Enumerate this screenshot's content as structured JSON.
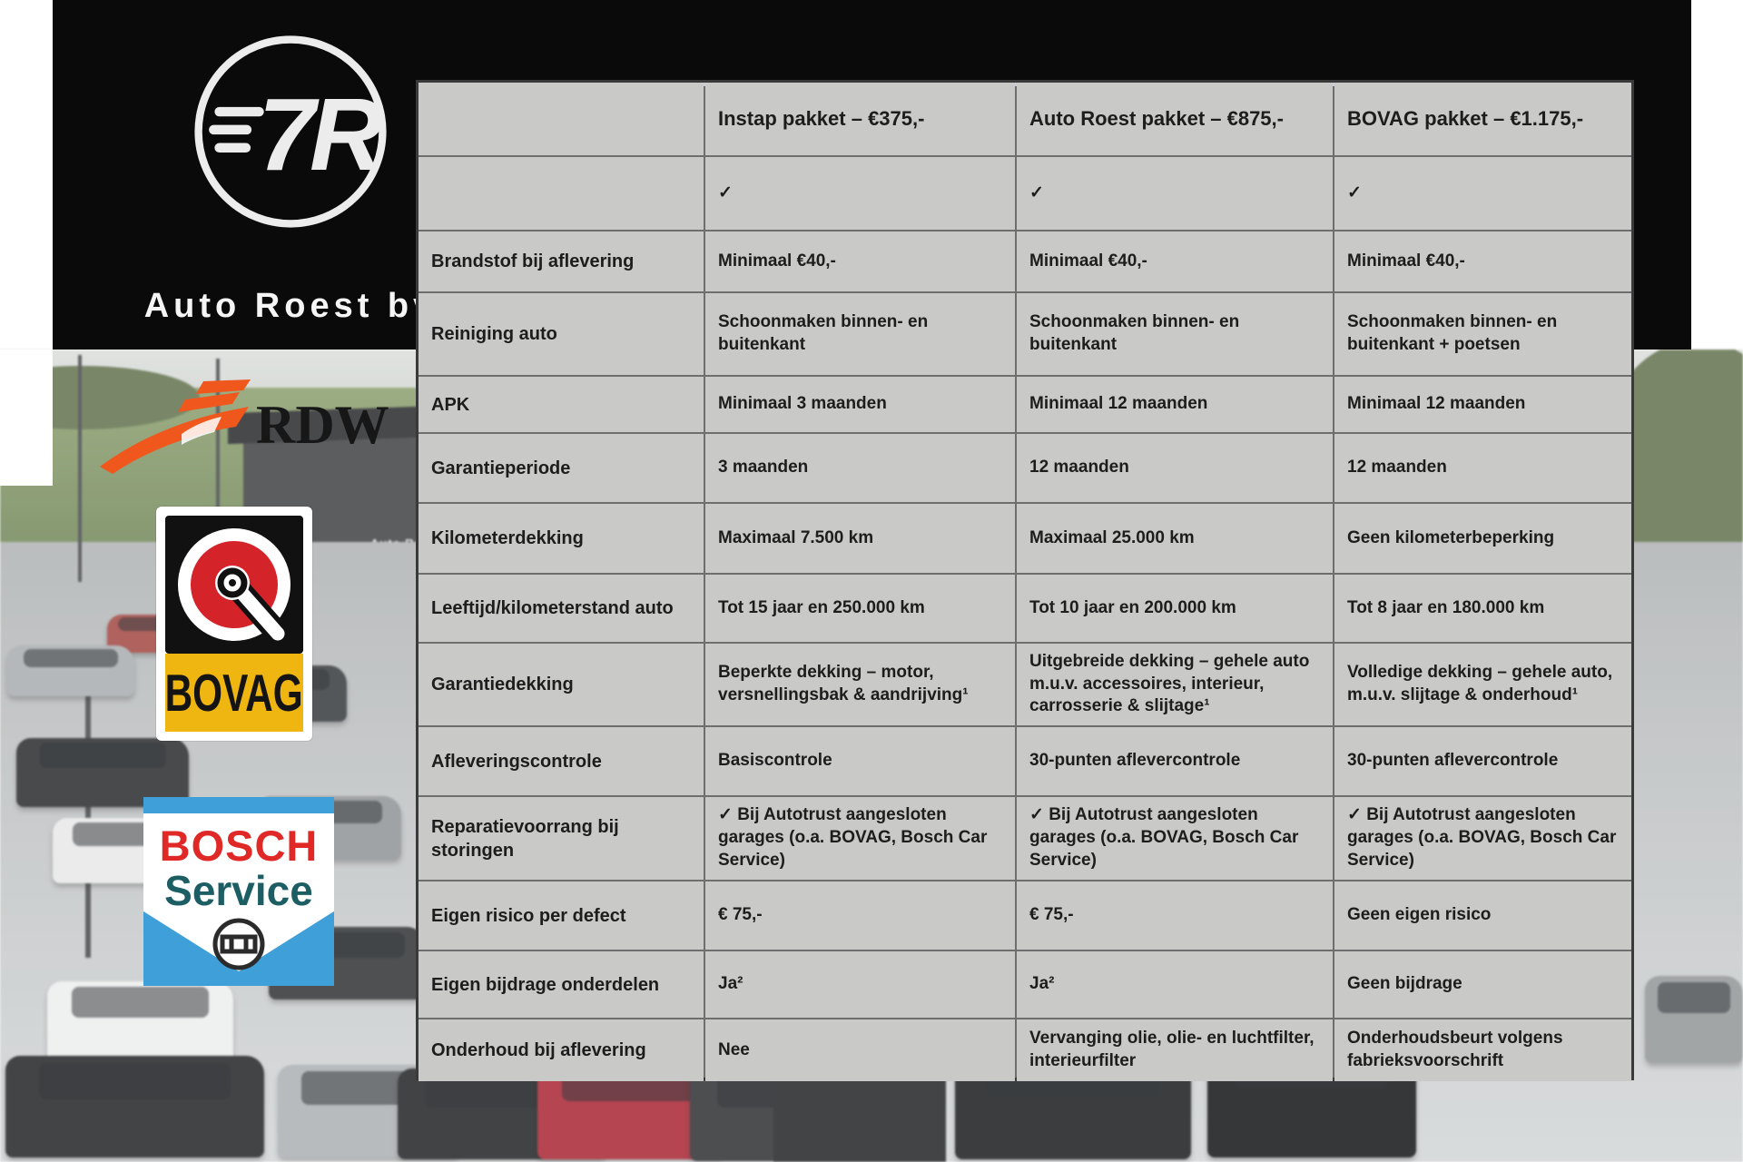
{
  "branding": {
    "auto_roest": {
      "monogram": "7R",
      "name": "Auto Roest bv"
    },
    "rdw": {
      "label": "RDW"
    },
    "bovag": {
      "label": "BOVAG"
    },
    "bosch": {
      "line1": "BOSCH",
      "line2": "Service"
    },
    "building_sign": "Auto Ro"
  },
  "colors": {
    "panel_black": "#0a0a0a",
    "table_cell": "#c9c9c8",
    "table_border": "#3a3a3a",
    "table_accent_top": "#cfc9da",
    "rdw_orange": "#f0571c",
    "bovag_red": "#d5232a",
    "bovag_yellow": "#efb511",
    "bosch_blue": "#3f9fd8",
    "bosch_red": "#e02826",
    "bosch_teal": "#1c5e63"
  },
  "table": {
    "columns": [
      "",
      "Instap pakket – €375,-",
      "Auto Roest pakket – €875,-",
      "BOVAG pakket – €1.175,-"
    ],
    "rows": [
      {
        "label": "",
        "cells": [
          "✓",
          "✓",
          "✓"
        ]
      },
      {
        "label": "Brandstof bij aflevering",
        "cells": [
          "Minimaal €40,-",
          "Minimaal €40,-",
          "Minimaal €40,-"
        ]
      },
      {
        "label": "Reiniging auto",
        "cells": [
          "Schoonmaken binnen- en buitenkant",
          "Schoonmaken binnen- en buitenkant",
          "Schoonmaken binnen- en buitenkant + poetsen"
        ]
      },
      {
        "label": "APK",
        "cells": [
          "Minimaal 3 maanden",
          "Minimaal 12 maanden",
          "Minimaal 12 maanden"
        ]
      },
      {
        "label": "Garantieperiode",
        "cells": [
          "3 maanden",
          "12 maanden",
          "12 maanden"
        ]
      },
      {
        "label": "Kilometerdekking",
        "cells": [
          "Maximaal 7.500 km",
          "Maximaal 25.000 km",
          "Geen kilometerbeperking"
        ]
      },
      {
        "label": "Leeftijd/kilometerstand auto",
        "cells": [
          "Tot 15 jaar en 250.000 km",
          "Tot 10 jaar en 200.000 km",
          "Tot 8 jaar en 180.000 km"
        ]
      },
      {
        "label": "Garantiedekking",
        "cells": [
          "Beperkte dekking – motor, versnellingsbak & aandrijving¹",
          "Uitgebreide dekking – gehele auto m.u.v. accessoires, interieur, carrosserie & slijtage¹",
          "Volledige dekking – gehele auto, m.u.v. slijtage & onderhoud¹"
        ]
      },
      {
        "label": "Afleveringscontrole",
        "cells": [
          "Basiscontrole",
          "30-punten aflevercontrole",
          "30-punten aflevercontrole"
        ]
      },
      {
        "label": "Reparatievoorrang bij storingen",
        "cells": [
          "✓ Bij Autotrust aangesloten garages (o.a. BOVAG, Bosch Car Service)",
          "✓ Bij Autotrust aangesloten garages (o.a. BOVAG, Bosch Car Service)",
          "✓ Bij Autotrust aangesloten garages (o.a. BOVAG, Bosch Car Service)"
        ]
      },
      {
        "label": "Eigen risico per defect",
        "cells": [
          "€ 75,-",
          "€ 75,-",
          "Geen eigen risico"
        ]
      },
      {
        "label": "Eigen bijdrage onderdelen",
        "cells": [
          "Ja²",
          "Ja²",
          "Geen bijdrage"
        ]
      },
      {
        "label": "Onderhoud bij aflevering",
        "cells": [
          "Nee",
          "Vervanging olie, olie- en luchtfilter, interieurfilter",
          "Onderhoudsbeurt volgens fabrieksvoorschrift"
        ]
      }
    ]
  }
}
